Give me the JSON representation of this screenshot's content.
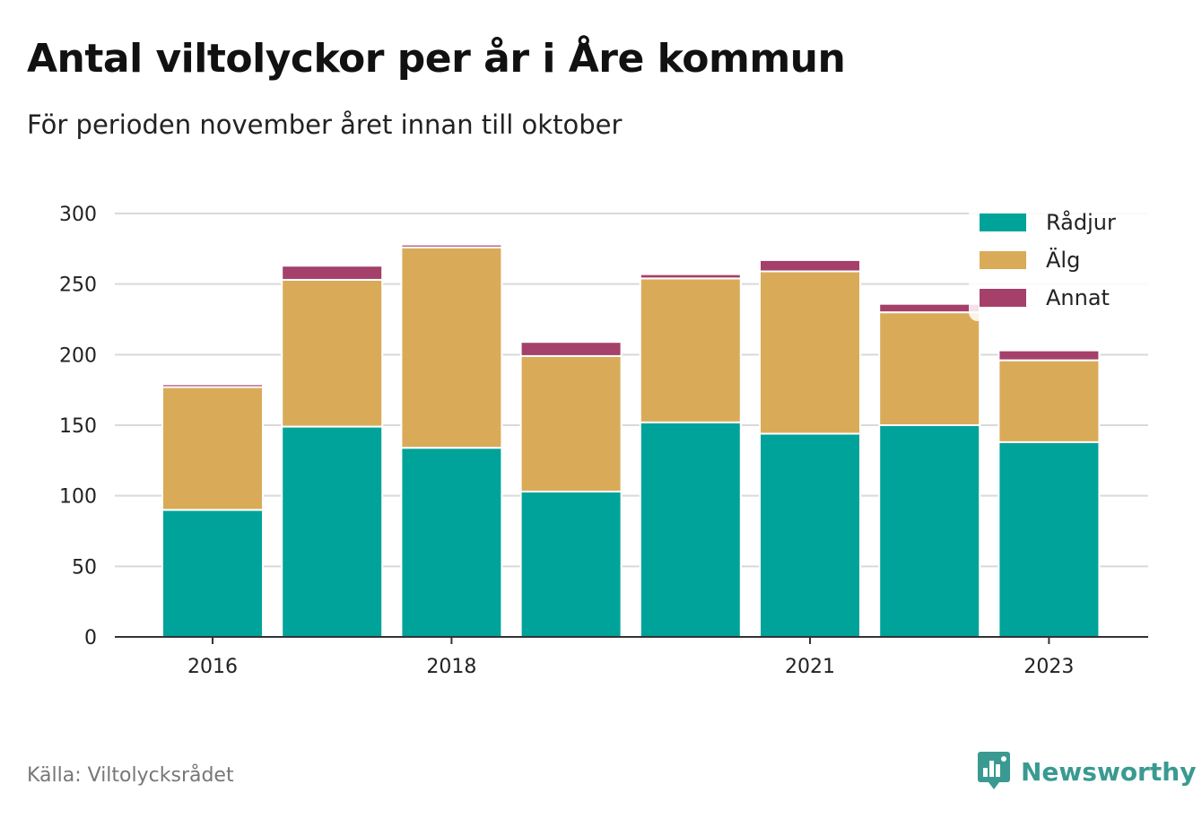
{
  "title": "Antal viltolyckor per år i Åre kommun",
  "subtitle": "För perioden november året innan till oktober",
  "source": "Källa: Viltolycksrådet",
  "brand": {
    "name": "Newsworthy",
    "icon": "newsworthy-logo-icon",
    "color": "#3a9a92"
  },
  "chart_data": {
    "type": "bar",
    "stacked": true,
    "categories": [
      "2016",
      "2017",
      "2018",
      "2019",
      "2020",
      "2021",
      "2022",
      "2023"
    ],
    "x_tick_labels": [
      "2016",
      "2018",
      "2021",
      "2023"
    ],
    "series": [
      {
        "name": "Rådjur",
        "color": "#00a39a",
        "values": [
          90,
          149,
          134,
          103,
          152,
          144,
          150,
          138
        ]
      },
      {
        "name": "Älg",
        "color": "#d9ab59",
        "values": [
          87,
          104,
          142,
          96,
          102,
          115,
          80,
          58
        ]
      },
      {
        "name": "Annat",
        "color": "#a5406a",
        "values": [
          2,
          10,
          2,
          10,
          3,
          8,
          6,
          7
        ]
      }
    ],
    "y_ticks": [
      "0",
      "50",
      "100",
      "150",
      "200",
      "250",
      "300"
    ],
    "ylim": [
      0,
      300
    ],
    "grid": true,
    "legend_position": "top-right"
  }
}
